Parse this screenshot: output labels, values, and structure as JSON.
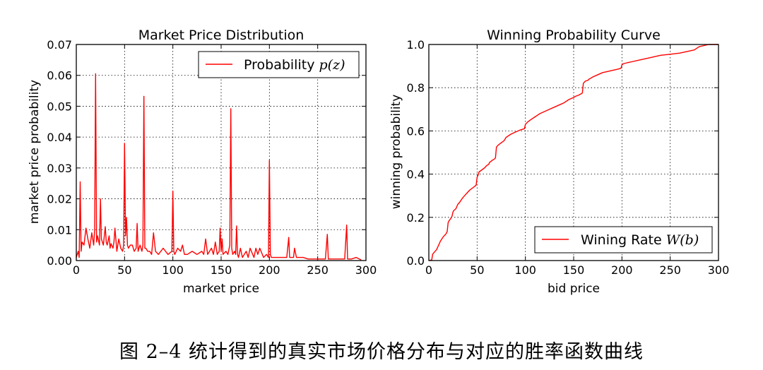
{
  "caption": "图 2–4 统计得到的真实市场价格分布与对应的胜率函数曲线",
  "colors": {
    "series": "#ff0000",
    "axis": "#000000",
    "grid": "#000000"
  },
  "chart_data": [
    {
      "type": "line",
      "title": "Market Price Distribution",
      "xlabel": "market price",
      "ylabel": "market price probability",
      "xlim": [
        0,
        300
      ],
      "ylim": [
        0,
        0.07
      ],
      "xticks": [
        0,
        50,
        100,
        150,
        200,
        250,
        300
      ],
      "xtick_labels": [
        "0",
        "50",
        "100",
        "150",
        "200",
        "250",
        "300"
      ],
      "yticks": [
        0,
        0.01,
        0.02,
        0.03,
        0.04,
        0.05,
        0.06,
        0.07
      ],
      "ytick_labels": [
        "0.00",
        "0.01",
        "0.02",
        "0.03",
        "0.04",
        "0.05",
        "0.06",
        "0.07"
      ],
      "grid": true,
      "legend": {
        "position": "top-right",
        "label": "Probability ",
        "math": "p(z)"
      },
      "series": [
        {
          "name": "Probability p(z)",
          "x": [
            0,
            2,
            3,
            4,
            5,
            6,
            8,
            10,
            12,
            14,
            16,
            18,
            19,
            20,
            21,
            22,
            24,
            25,
            26,
            28,
            30,
            31,
            32,
            34,
            35,
            36,
            38,
            39,
            40,
            42,
            44,
            46,
            48,
            49,
            50,
            51,
            52,
            53,
            54,
            56,
            58,
            60,
            62,
            63,
            64,
            66,
            68,
            69,
            70,
            71,
            72,
            74,
            76,
            78,
            80,
            82,
            85,
            90,
            95,
            99,
            100,
            101,
            102,
            105,
            108,
            110,
            112,
            115,
            120,
            125,
            130,
            132,
            134,
            136,
            140,
            142,
            144,
            146,
            148,
            149,
            150,
            151,
            152,
            155,
            157,
            159,
            160,
            161,
            162,
            164,
            165,
            166,
            167,
            168,
            170,
            172,
            174,
            176,
            178,
            180,
            184,
            186,
            188,
            190,
            194,
            197,
            199,
            200,
            201,
            202,
            205,
            210,
            215,
            218,
            220,
            221,
            222,
            225,
            226,
            228,
            230,
            235,
            240,
            245,
            250,
            255,
            258,
            260,
            261,
            262,
            265,
            270,
            275,
            278,
            280,
            281,
            282,
            285,
            290,
            295
          ],
          "y": [
            0.001,
            0.003,
            0.001,
            0.0255,
            0.003,
            0.006,
            0.005,
            0.0105,
            0.007,
            0.004,
            0.009,
            0.005,
            0.01,
            0.0605,
            0.006,
            0.008,
            0.005,
            0.02,
            0.007,
            0.005,
            0.011,
            0.006,
            0.005,
            0.008,
            0.004,
            0.0055,
            0.004,
            0.006,
            0.0105,
            0.003,
            0.007,
            0.004,
            0.003,
            0.005,
            0.038,
            0.008,
            0.014,
            0.005,
            0.004,
            0.005,
            0.005,
            0.003,
            0.004,
            0.012,
            0.003,
            0.005,
            0.003,
            0.005,
            0.0532,
            0.004,
            0.004,
            0.003,
            0.003,
            0.002,
            0.009,
            0.003,
            0.002,
            0.004,
            0.002,
            0.003,
            0.0225,
            0.003,
            0.002,
            0.004,
            0.003,
            0.005,
            0.002,
            0.002,
            0.003,
            0.002,
            0.003,
            0.002,
            0.007,
            0.002,
            0.004,
            0.002,
            0.006,
            0.002,
            0.003,
            0.0105,
            0.003,
            0.007,
            0.002,
            0.003,
            0.002,
            0.005,
            0.0492,
            0.004,
            0.002,
            0.003,
            0.002,
            0.0112,
            0.002,
            0.001,
            0.004,
            0.001,
            0.002,
            0.003,
            0.001,
            0.004,
            0.001,
            0.004,
            0.002,
            0.004,
            0.001,
            0.002,
            0.001,
            0.0325,
            0.002,
            0.001,
            0.001,
            0.001,
            0.001,
            0.001,
            0.0075,
            0.001,
            0.001,
            0.001,
            0.004,
            0.001,
            0.001,
            0.001,
            0.0005,
            0.0005,
            0.0005,
            0.0005,
            0.0005,
            0.0085,
            0.0005,
            0.0005,
            0.0005,
            0.0005,
            0.0005,
            0.0005,
            0.0115,
            0.0005,
            0.0005,
            0.0005,
            0.001,
            0.0002
          ]
        }
      ]
    },
    {
      "type": "line",
      "title": "Winning Probability Curve",
      "xlabel": "bid price",
      "ylabel": "winning probability",
      "xlim": [
        0,
        300
      ],
      "ylim": [
        0,
        1.0
      ],
      "xticks": [
        0,
        50,
        100,
        150,
        200,
        250,
        300
      ],
      "xtick_labels": [
        "0",
        "50",
        "100",
        "150",
        "200",
        "250",
        "300"
      ],
      "yticks": [
        0,
        0.2,
        0.4,
        0.6,
        0.8,
        1.0
      ],
      "ytick_labels": [
        "0.0",
        "0.2",
        "0.4",
        "0.6",
        "0.8",
        "1.0"
      ],
      "grid": true,
      "legend": {
        "position": "bottom-right",
        "label": "Wining Rate ",
        "math": "W(b)"
      },
      "series": [
        {
          "name": "Wining Rate W(b)",
          "x": [
            0,
            3,
            4,
            5,
            8,
            10,
            12,
            15,
            18,
            19,
            20,
            21,
            22,
            24,
            25,
            26,
            28,
            30,
            32,
            35,
            38,
            40,
            42,
            45,
            48,
            49,
            50,
            51,
            52,
            55,
            58,
            60,
            62,
            63,
            64,
            66,
            68,
            69,
            70,
            71,
            72,
            75,
            78,
            80,
            85,
            90,
            95,
            99,
            100,
            101,
            102,
            105,
            110,
            115,
            120,
            125,
            130,
            135,
            140,
            145,
            150,
            152,
            155,
            157,
            159,
            160,
            161,
            162,
            165,
            166,
            167,
            170,
            175,
            180,
            185,
            190,
            195,
            199,
            200,
            201,
            205,
            210,
            220,
            230,
            240,
            250,
            260,
            270,
            275,
            280,
            285,
            290,
            300
          ],
          "y": [
            0.0,
            0.003,
            0.03,
            0.035,
            0.05,
            0.07,
            0.09,
            0.11,
            0.125,
            0.135,
            0.175,
            0.185,
            0.19,
            0.205,
            0.225,
            0.232,
            0.24,
            0.26,
            0.27,
            0.29,
            0.305,
            0.315,
            0.325,
            0.335,
            0.345,
            0.35,
            0.385,
            0.395,
            0.41,
            0.42,
            0.43,
            0.44,
            0.445,
            0.455,
            0.458,
            0.465,
            0.47,
            0.475,
            0.525,
            0.53,
            0.535,
            0.545,
            0.555,
            0.57,
            0.585,
            0.595,
            0.605,
            0.61,
            0.63,
            0.635,
            0.64,
            0.65,
            0.665,
            0.68,
            0.69,
            0.7,
            0.71,
            0.72,
            0.73,
            0.745,
            0.755,
            0.76,
            0.765,
            0.77,
            0.775,
            0.82,
            0.825,
            0.83,
            0.835,
            0.84,
            0.842,
            0.85,
            0.86,
            0.87,
            0.875,
            0.88,
            0.885,
            0.89,
            0.905,
            0.91,
            0.915,
            0.92,
            0.93,
            0.94,
            0.95,
            0.955,
            0.96,
            0.97,
            0.975,
            0.99,
            0.995,
            1.0,
            1.0
          ]
        }
      ]
    }
  ]
}
